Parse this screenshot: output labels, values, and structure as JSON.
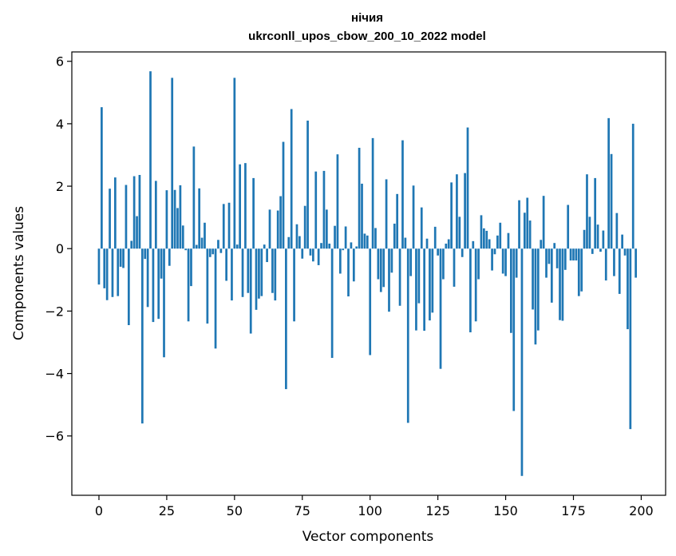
{
  "chart_data": {
    "type": "bar",
    "title": "нічия",
    "subtitle": "ukrconll_upos_cbow_200_10_2022 model",
    "xlabel": "Vector components",
    "ylabel": "Components values",
    "xlim": [
      -10,
      209
    ],
    "ylim": [
      -7.9,
      6.3
    ],
    "xticks": [
      0,
      25,
      50,
      75,
      100,
      125,
      150,
      175,
      200
    ],
    "yticks": [
      -6,
      -4,
      -2,
      0,
      2,
      4,
      6
    ],
    "x_tick_labels": [
      "0",
      "25",
      "50",
      "75",
      "100",
      "125",
      "150",
      "175",
      "200"
    ],
    "y_tick_labels": [
      "−6",
      "−4",
      "−2",
      "0",
      "2",
      "4",
      "6"
    ],
    "bar_color": "#1f77b4",
    "grid": false,
    "values": [
      -1.15,
      4.53,
      -1.27,
      -1.65,
      1.92,
      -1.55,
      2.28,
      -1.52,
      -0.58,
      -0.62,
      2.04,
      -2.45,
      0.25,
      2.32,
      1.04,
      2.36,
      -5.6,
      -0.33,
      -1.87,
      5.68,
      -2.35,
      2.17,
      -2.25,
      -0.96,
      -3.48,
      1.87,
      -0.55,
      5.47,
      1.88,
      1.3,
      2.03,
      0.74,
      -0.05,
      -2.33,
      -1.2,
      3.27,
      0.12,
      1.93,
      0.35,
      0.83,
      -2.4,
      -0.27,
      -0.18,
      -3.2,
      0.28,
      -0.14,
      1.43,
      -1.03,
      1.47,
      -1.66,
      5.47,
      0.13,
      2.7,
      -1.55,
      2.74,
      -1.42,
      -2.72,
      2.26,
      -1.96,
      -1.6,
      -1.52,
      0.13,
      -0.43,
      1.25,
      -1.42,
      -1.66,
      1.22,
      1.68,
      3.42,
      -4.5,
      0.37,
      4.47,
      -2.33,
      0.78,
      0.4,
      -0.32,
      1.37,
      4.1,
      -0.22,
      -0.41,
      2.47,
      -0.53,
      0.18,
      2.49,
      1.25,
      0.16,
      -3.5,
      0.73,
      3.02,
      -0.8,
      -0.05,
      0.71,
      -1.53,
      0.2,
      -1.05,
      0.07,
      3.23,
      2.08,
      0.48,
      0.42,
      -3.41,
      3.54,
      0.66,
      -0.98,
      -1.39,
      -1.23,
      2.22,
      -2.02,
      -0.77,
      0.8,
      1.75,
      -1.83,
      3.47,
      0.35,
      -5.58,
      -0.88,
      2.02,
      -2.62,
      -1.75,
      1.32,
      -2.63,
      0.32,
      -2.3,
      -2.05,
      0.7,
      -0.22,
      -3.85,
      -0.98,
      0.16,
      0.3,
      2.12,
      -1.22,
      2.38,
      1.02,
      -0.27,
      2.42,
      3.88,
      -2.68,
      0.24,
      -2.33,
      -0.98,
      1.07,
      0.65,
      0.57,
      0.3,
      -0.7,
      -0.18,
      0.42,
      0.83,
      -0.8,
      -0.88,
      0.5,
      -2.7,
      -5.2,
      -0.93,
      1.55,
      -7.28,
      1.15,
      1.63,
      0.9,
      -1.95,
      -3.07,
      -2.62,
      0.28,
      1.69,
      -0.93,
      -0.49,
      -1.73,
      0.18,
      -0.63,
      -2.29,
      -2.31,
      -0.68,
      1.4,
      -0.38,
      -0.38,
      -0.38,
      -1.52,
      -1.37,
      0.6,
      2.38,
      1.02,
      -0.17,
      2.26,
      0.77,
      -0.1,
      0.58,
      -1.02,
      4.18,
      3.03,
      -0.88,
      1.14,
      -1.45,
      0.45,
      -0.22,
      -2.58,
      -5.78,
      4.0,
      -0.93
    ]
  }
}
